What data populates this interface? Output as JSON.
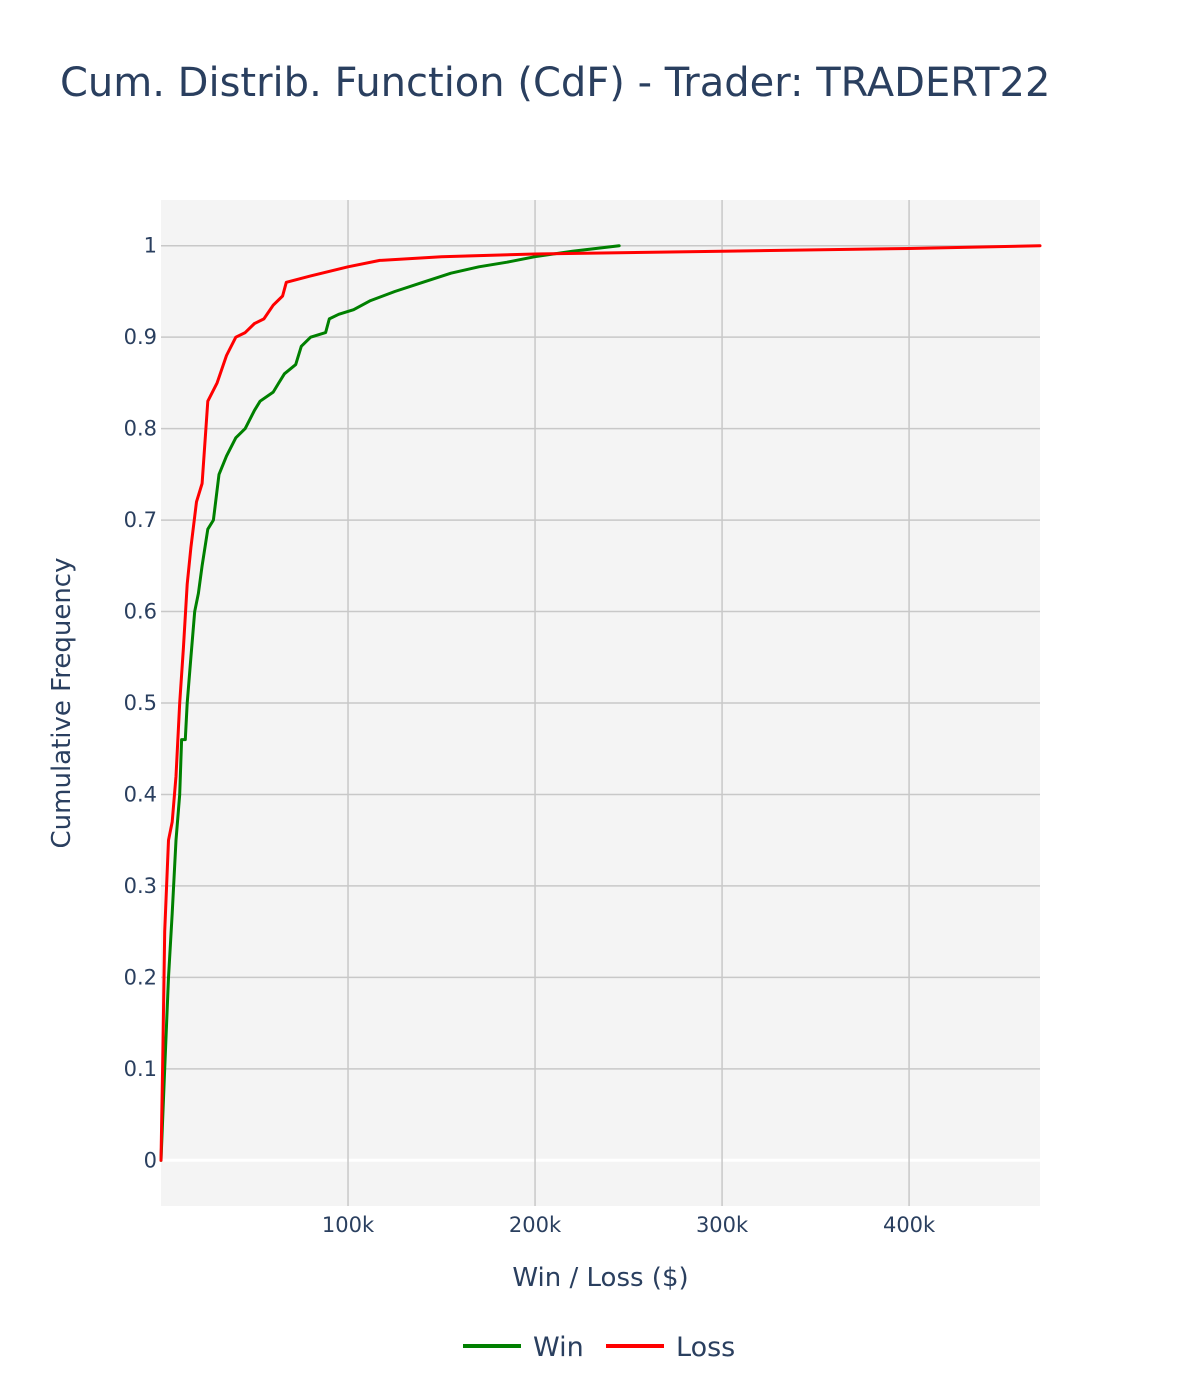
{
  "chart_data": {
    "type": "line",
    "title": "Cum. Distrib. Function (CdF) - Trader: TRADERT22",
    "xlabel": "Win / Loss ($)",
    "ylabel": "Cumulative Frequency",
    "xlim": [
      0,
      470000
    ],
    "ylim": [
      -0.05,
      1.05
    ],
    "grid": true,
    "legend_position": "bottom-center",
    "x_ticks": [
      100000,
      200000,
      300000,
      400000
    ],
    "x_tick_labels": [
      "100k",
      "200k",
      "300k",
      "400k"
    ],
    "y_ticks": [
      0,
      0.1,
      0.2,
      0.3,
      0.4,
      0.5,
      0.6,
      0.7,
      0.8,
      0.9,
      1
    ],
    "y_tick_labels": [
      "0",
      "0.1",
      "0.2",
      "0.3",
      "0.4",
      "0.5",
      "0.6",
      "0.7",
      "0.8",
      "0.9",
      "1"
    ],
    "colors": {
      "plot_bg": "#f4f4f4",
      "grid": "#c8c8c8",
      "text": "#2a3f5f"
    },
    "series": [
      {
        "name": "Win",
        "color": "#008000",
        "points": [
          [
            0,
            0
          ],
          [
            2000,
            0.1
          ],
          [
            4000,
            0.2
          ],
          [
            6000,
            0.27
          ],
          [
            8000,
            0.35
          ],
          [
            10000,
            0.4
          ],
          [
            11000,
            0.46
          ],
          [
            13000,
            0.46
          ],
          [
            14000,
            0.5
          ],
          [
            16000,
            0.55
          ],
          [
            18000,
            0.6
          ],
          [
            20000,
            0.62
          ],
          [
            22000,
            0.65
          ],
          [
            25000,
            0.69
          ],
          [
            28000,
            0.7
          ],
          [
            31000,
            0.75
          ],
          [
            35000,
            0.77
          ],
          [
            40000,
            0.79
          ],
          [
            45000,
            0.8
          ],
          [
            50000,
            0.82
          ],
          [
            53000,
            0.83
          ],
          [
            60000,
            0.84
          ],
          [
            63000,
            0.85
          ],
          [
            66000,
            0.86
          ],
          [
            72000,
            0.87
          ],
          [
            75000,
            0.89
          ],
          [
            80000,
            0.9
          ],
          [
            88000,
            0.905
          ],
          [
            90000,
            0.92
          ],
          [
            95000,
            0.925
          ],
          [
            103000,
            0.93
          ],
          [
            112000,
            0.94
          ],
          [
            125000,
            0.95
          ],
          [
            140000,
            0.96
          ],
          [
            155000,
            0.97
          ],
          [
            170000,
            0.977
          ],
          [
            185000,
            0.982
          ],
          [
            200000,
            0.988
          ],
          [
            220000,
            0.994
          ],
          [
            245000,
            1.0
          ]
        ]
      },
      {
        "name": "Loss",
        "color": "#ff0000",
        "points": [
          [
            0,
            0
          ],
          [
            1000,
            0.12
          ],
          [
            2000,
            0.25
          ],
          [
            4000,
            0.35
          ],
          [
            6000,
            0.37
          ],
          [
            8000,
            0.42
          ],
          [
            10000,
            0.5
          ],
          [
            12000,
            0.56
          ],
          [
            14000,
            0.63
          ],
          [
            16000,
            0.67
          ],
          [
            19000,
            0.72
          ],
          [
            22000,
            0.74
          ],
          [
            25000,
            0.83
          ],
          [
            30000,
            0.85
          ],
          [
            35000,
            0.88
          ],
          [
            40000,
            0.9
          ],
          [
            45000,
            0.905
          ],
          [
            50000,
            0.915
          ],
          [
            55000,
            0.92
          ],
          [
            60000,
            0.935
          ],
          [
            65000,
            0.945
          ],
          [
            67000,
            0.96
          ],
          [
            80000,
            0.967
          ],
          [
            100000,
            0.977
          ],
          [
            117000,
            0.984
          ],
          [
            150000,
            0.988
          ],
          [
            200000,
            0.991
          ],
          [
            300000,
            0.994
          ],
          [
            400000,
            0.997
          ],
          [
            470000,
            1.0
          ]
        ]
      }
    ]
  }
}
